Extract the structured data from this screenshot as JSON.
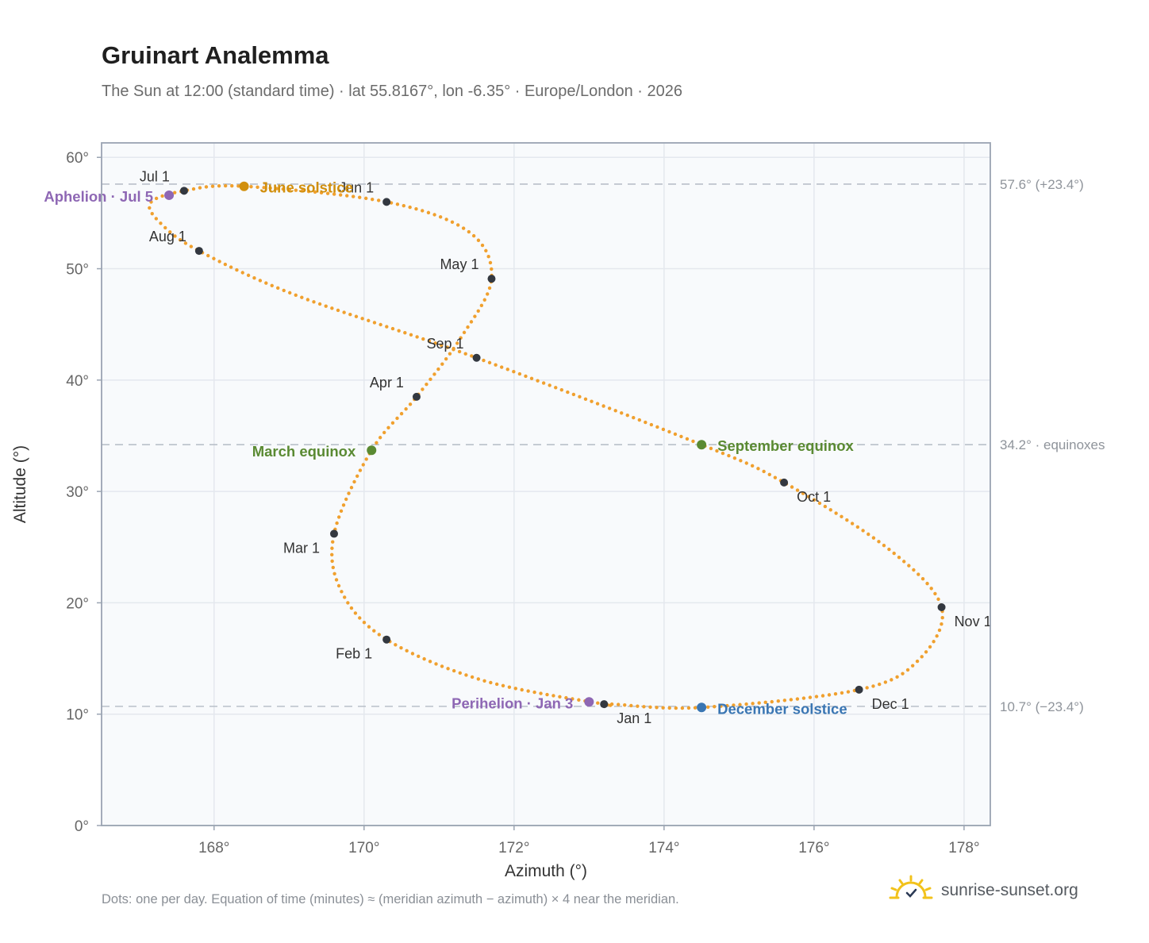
{
  "title": "Gruinart Analemma",
  "subtitle": "The Sun at 12:00 (standard time) · lat 55.8167°, lon -6.35° · Europe/London · 2026",
  "footnote": "Dots: one per day. Equation of time (minutes) ≈ (meridian azimuth − azimuth) × 4 near the meridian.",
  "brand": {
    "name": "sunrise-sunset.org",
    "icon": "sun-logo-icon"
  },
  "colors": {
    "path": "#f0a02e",
    "month_marker": "#333840",
    "solstice_june": "#d18f0d",
    "equinox": "#5a8a32",
    "solstice_december": "#3a76b3",
    "aphelion_perihelion": "#8e67b4",
    "plot_bg": "#f8fafc",
    "grid": "#e4e8ee",
    "frame": "#9aa4b2",
    "ref_line": "#b9c0c9"
  },
  "chart_data": {
    "type": "scatter",
    "title": "Gruinart Analemma",
    "xlabel": "Azimuth (°)",
    "ylabel": "Altitude (°)",
    "xlim": [
      166.5,
      178.35
    ],
    "ylim": [
      0,
      61.3
    ],
    "xticks": [
      168,
      170,
      172,
      174,
      176,
      178
    ],
    "xtick_labels": [
      "168°",
      "170°",
      "172°",
      "174°",
      "176°",
      "178°"
    ],
    "yticks": [
      0,
      10,
      20,
      30,
      40,
      50,
      60
    ],
    "ytick_labels": [
      "0°",
      "10°",
      "20°",
      "30°",
      "40°",
      "50°",
      "60°"
    ],
    "grid": true,
    "path_anchors": [
      {
        "date": "Jan 1",
        "az": 173.2,
        "alt": 10.9
      },
      {
        "date": "Jan 15",
        "az": 171.6,
        "alt": 13.0
      },
      {
        "date": "Feb 1",
        "az": 170.3,
        "alt": 16.7
      },
      {
        "date": "Feb 15",
        "az": 169.7,
        "alt": 21.0
      },
      {
        "date": "Mar 1",
        "az": 169.6,
        "alt": 26.2
      },
      {
        "date": "Mar 20",
        "az": 170.1,
        "alt": 33.7
      },
      {
        "date": "Apr 1",
        "az": 170.7,
        "alt": 38.5
      },
      {
        "date": "Apr 15",
        "az": 171.3,
        "alt": 43.9
      },
      {
        "date": "May 1",
        "az": 171.7,
        "alt": 49.1
      },
      {
        "date": "May 15",
        "az": 171.4,
        "alt": 53.3
      },
      {
        "date": "Jun 1",
        "az": 170.3,
        "alt": 56.0
      },
      {
        "date": "Jun 21",
        "az": 168.4,
        "alt": 57.4
      },
      {
        "date": "Jul 1",
        "az": 167.6,
        "alt": 57.0
      },
      {
        "date": "Jul 10",
        "az": 167.15,
        "alt": 55.9
      },
      {
        "date": "Jul 20",
        "az": 167.3,
        "alt": 54.0
      },
      {
        "date": "Aug 1",
        "az": 167.8,
        "alt": 51.6
      },
      {
        "date": "Aug 15",
        "az": 169.1,
        "alt": 47.6
      },
      {
        "date": "Sep 1",
        "az": 171.5,
        "alt": 42.0
      },
      {
        "date": "Sep 22",
        "az": 174.5,
        "alt": 34.2
      },
      {
        "date": "Oct 1",
        "az": 175.6,
        "alt": 30.8
      },
      {
        "date": "Oct 15",
        "az": 177.0,
        "alt": 24.8
      },
      {
        "date": "Nov 1",
        "az": 177.7,
        "alt": 19.6
      },
      {
        "date": "Nov 15",
        "az": 177.4,
        "alt": 14.9
      },
      {
        "date": "Dec 1",
        "az": 176.6,
        "alt": 12.2
      },
      {
        "date": "Dec 21",
        "az": 174.5,
        "alt": 10.6
      },
      {
        "date": "Dec 31",
        "az": 173.3,
        "alt": 10.9
      }
    ],
    "month_markers": [
      {
        "label": "Jan 1",
        "az": 173.2,
        "alt": 10.9,
        "anchor": "start",
        "dx": 16,
        "dy": 24
      },
      {
        "label": "Feb 1",
        "az": 170.3,
        "alt": 16.7,
        "anchor": "end",
        "dx": -18,
        "dy": 24
      },
      {
        "label": "Mar 1",
        "az": 169.6,
        "alt": 26.2,
        "anchor": "end",
        "dx": -18,
        "dy": 24
      },
      {
        "label": "Apr 1",
        "az": 170.7,
        "alt": 38.5,
        "anchor": "end",
        "dx": -16,
        "dy": -12
      },
      {
        "label": "May 1",
        "az": 171.7,
        "alt": 49.1,
        "anchor": "end",
        "dx": -16,
        "dy": -12
      },
      {
        "label": "Jun 1",
        "az": 170.3,
        "alt": 56.0,
        "anchor": "end",
        "dx": -16,
        "dy": -12
      },
      {
        "label": "Jul 1",
        "az": 167.6,
        "alt": 57.0,
        "anchor": "end",
        "dx": -18,
        "dy": -12
      },
      {
        "label": "Aug 1",
        "az": 167.8,
        "alt": 51.6,
        "anchor": "end",
        "dx": -16,
        "dy": -12
      },
      {
        "label": "Sep 1",
        "az": 171.5,
        "alt": 42.0,
        "anchor": "end",
        "dx": -16,
        "dy": -12
      },
      {
        "label": "Oct 1",
        "az": 175.6,
        "alt": 30.8,
        "anchor": "start",
        "dx": 16,
        "dy": 24
      },
      {
        "label": "Nov 1",
        "az": 177.7,
        "alt": 19.6,
        "anchor": "start",
        "dx": 16,
        "dy": 24
      },
      {
        "label": "Dec 1",
        "az": 176.6,
        "alt": 12.2,
        "anchor": "start",
        "dx": 16,
        "dy": 24
      }
    ],
    "events": [
      {
        "name": "June solstice",
        "label": "June solstice",
        "az": 168.4,
        "alt": 57.4,
        "color": "#d18f0d",
        "anchor": "start",
        "dx": 20,
        "dy": 8
      },
      {
        "name": "March equinox",
        "label": "March equinox",
        "az": 170.1,
        "alt": 33.7,
        "color": "#5a8a32",
        "anchor": "end",
        "dx": -20,
        "dy": 8
      },
      {
        "name": "September equinox",
        "label": "September equinox",
        "az": 174.5,
        "alt": 34.2,
        "color": "#5a8a32",
        "anchor": "start",
        "dx": 20,
        "dy": 8
      },
      {
        "name": "December solstice",
        "label": "December solstice",
        "az": 174.5,
        "alt": 10.6,
        "color": "#3a76b3",
        "anchor": "start",
        "dx": 20,
        "dy": 8
      },
      {
        "name": "Aphelion",
        "label": "Aphelion · Jul 5",
        "az": 167.4,
        "alt": 56.6,
        "color": "#8e67b4",
        "anchor": "end",
        "dx": -20,
        "dy": 8
      },
      {
        "name": "Perihelion",
        "label": "Perihelion · Jan 3",
        "az": 173.0,
        "alt": 11.1,
        "color": "#8e67b4",
        "anchor": "end",
        "dx": -20,
        "dy": 8
      }
    ],
    "reference_lines": [
      {
        "alt": 57.6,
        "label": "57.6° (+23.4°)"
      },
      {
        "alt": 34.2,
        "label": "34.2° · equinoxes"
      },
      {
        "alt": 10.7,
        "label": "10.7° (−23.4°)"
      }
    ]
  }
}
